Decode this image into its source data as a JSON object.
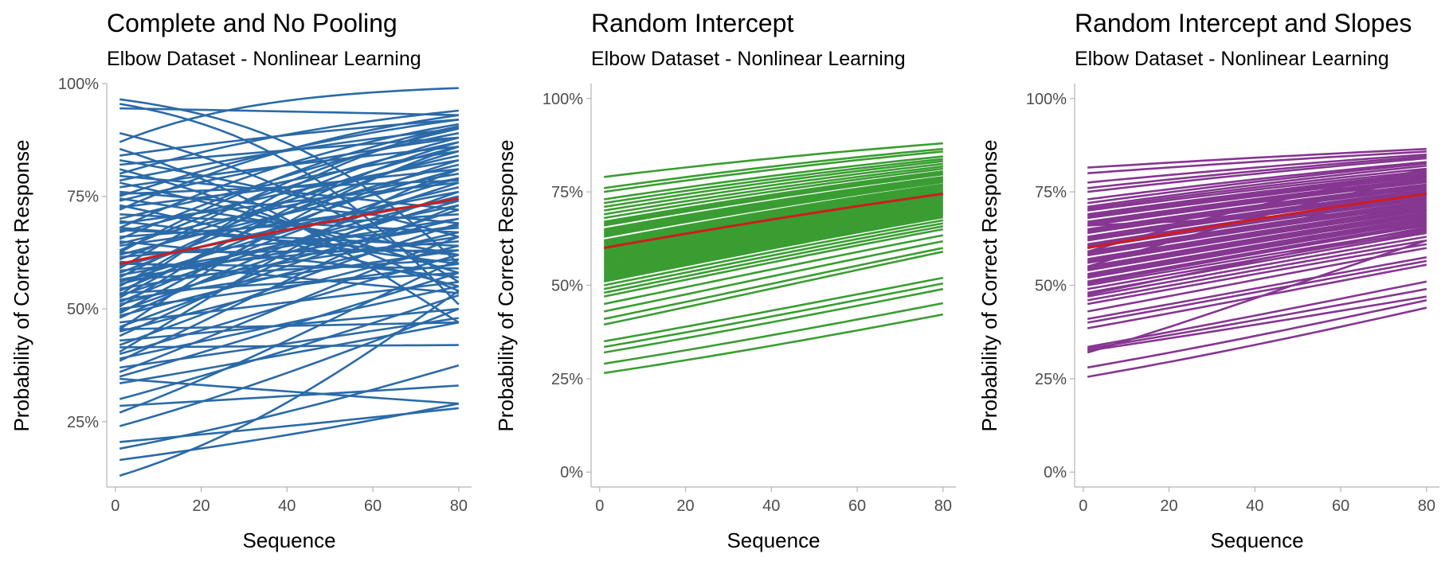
{
  "chart_data": [
    {
      "type": "line",
      "title": "Complete and No Pooling",
      "subtitle": "Elbow Dataset - Nonlinear Learning",
      "xlabel": "Sequence",
      "ylabel": "Probability of Correct Response",
      "xlim": [
        -2,
        83
      ],
      "ylim": [
        0.105,
        1.0
      ],
      "x_ticks": [
        0,
        20,
        40,
        60,
        80
      ],
      "x_tick_labels": [
        "0",
        "20",
        "40",
        "60",
        "80"
      ],
      "y_ticks": [
        0.25,
        0.5,
        0.75,
        1.0
      ],
      "y_tick_labels": [
        "25%",
        "50%",
        "75%",
        "100%"
      ],
      "x_range": [
        1,
        80
      ],
      "grid": false,
      "legend": "none",
      "subject_color": "#2b6aa8",
      "population_color": "#d01c1c",
      "population": {
        "start": 0.6,
        "end": 0.745
      },
      "subjects": [
        {
          "start": 0.965,
          "end": 0.6
        },
        {
          "start": 0.955,
          "end": 0.51
        },
        {
          "start": 0.945,
          "end": 0.93
        },
        {
          "start": 0.89,
          "end": 0.56
        },
        {
          "start": 0.87,
          "end": 0.99
        },
        {
          "start": 0.855,
          "end": 0.47
        },
        {
          "start": 0.84,
          "end": 0.92
        },
        {
          "start": 0.83,
          "end": 0.66
        },
        {
          "start": 0.82,
          "end": 0.88
        },
        {
          "start": 0.81,
          "end": 0.54
        },
        {
          "start": 0.8,
          "end": 0.94
        },
        {
          "start": 0.795,
          "end": 0.72
        },
        {
          "start": 0.785,
          "end": 0.9
        },
        {
          "start": 0.78,
          "end": 0.58
        },
        {
          "start": 0.77,
          "end": 0.86
        },
        {
          "start": 0.76,
          "end": 0.69
        },
        {
          "start": 0.75,
          "end": 0.92
        },
        {
          "start": 0.745,
          "end": 0.62
        },
        {
          "start": 0.74,
          "end": 0.88
        },
        {
          "start": 0.73,
          "end": 0.55
        },
        {
          "start": 0.725,
          "end": 0.81
        },
        {
          "start": 0.72,
          "end": 0.93
        },
        {
          "start": 0.71,
          "end": 0.67
        },
        {
          "start": 0.7,
          "end": 0.85
        },
        {
          "start": 0.695,
          "end": 0.6
        },
        {
          "start": 0.69,
          "end": 0.78
        },
        {
          "start": 0.68,
          "end": 0.91
        },
        {
          "start": 0.675,
          "end": 0.64
        },
        {
          "start": 0.67,
          "end": 0.83
        },
        {
          "start": 0.66,
          "end": 0.71
        },
        {
          "start": 0.655,
          "end": 0.89
        },
        {
          "start": 0.65,
          "end": 0.57
        },
        {
          "start": 0.645,
          "end": 0.8
        },
        {
          "start": 0.64,
          "end": 0.74
        },
        {
          "start": 0.63,
          "end": 0.87
        },
        {
          "start": 0.625,
          "end": 0.63
        },
        {
          "start": 0.62,
          "end": 0.79
        },
        {
          "start": 0.615,
          "end": 0.68
        },
        {
          "start": 0.61,
          "end": 0.84
        },
        {
          "start": 0.6,
          "end": 0.59
        },
        {
          "start": 0.595,
          "end": 0.76
        },
        {
          "start": 0.59,
          "end": 0.9
        },
        {
          "start": 0.585,
          "end": 0.65
        },
        {
          "start": 0.58,
          "end": 0.82
        },
        {
          "start": 0.575,
          "end": 0.7
        },
        {
          "start": 0.57,
          "end": 0.86
        },
        {
          "start": 0.565,
          "end": 0.61
        },
        {
          "start": 0.56,
          "end": 0.77
        },
        {
          "start": 0.555,
          "end": 0.73
        },
        {
          "start": 0.55,
          "end": 0.88
        },
        {
          "start": 0.545,
          "end": 0.66
        },
        {
          "start": 0.54,
          "end": 0.81
        },
        {
          "start": 0.535,
          "end": 0.58
        },
        {
          "start": 0.53,
          "end": 0.75
        },
        {
          "start": 0.525,
          "end": 0.85
        },
        {
          "start": 0.52,
          "end": 0.63
        },
        {
          "start": 0.515,
          "end": 0.79
        },
        {
          "start": 0.51,
          "end": 0.7
        },
        {
          "start": 0.505,
          "end": 0.87
        },
        {
          "start": 0.5,
          "end": 0.6
        },
        {
          "start": 0.495,
          "end": 0.74
        },
        {
          "start": 0.49,
          "end": 0.83
        },
        {
          "start": 0.485,
          "end": 0.67
        },
        {
          "start": 0.48,
          "end": 0.78
        },
        {
          "start": 0.47,
          "end": 0.56
        },
        {
          "start": 0.46,
          "end": 0.72
        },
        {
          "start": 0.455,
          "end": 0.86
        },
        {
          "start": 0.45,
          "end": 0.64
        },
        {
          "start": 0.44,
          "end": 0.76
        },
        {
          "start": 0.43,
          "end": 0.5
        },
        {
          "start": 0.42,
          "end": 0.69
        },
        {
          "start": 0.415,
          "end": 0.42
        },
        {
          "start": 0.405,
          "end": 0.81
        },
        {
          "start": 0.4,
          "end": 0.62
        },
        {
          "start": 0.39,
          "end": 0.55
        },
        {
          "start": 0.385,
          "end": 0.73
        },
        {
          "start": 0.37,
          "end": 0.48
        },
        {
          "start": 0.36,
          "end": 0.66
        },
        {
          "start": 0.35,
          "end": 0.58
        },
        {
          "start": 0.345,
          "end": 0.29
        },
        {
          "start": 0.335,
          "end": 0.47
        },
        {
          "start": 0.3,
          "end": 0.53
        },
        {
          "start": 0.285,
          "end": 0.33
        },
        {
          "start": 0.27,
          "end": 0.61
        },
        {
          "start": 0.24,
          "end": 0.5
        },
        {
          "start": 0.205,
          "end": 0.28
        },
        {
          "start": 0.19,
          "end": 0.375
        },
        {
          "start": 0.165,
          "end": 0.29
        },
        {
          "start": 0.13,
          "end": 0.54
        },
        {
          "start": 0.455,
          "end": 0.47
        },
        {
          "start": 0.625,
          "end": 0.905
        },
        {
          "start": 0.68,
          "end": 0.62
        },
        {
          "start": 0.53,
          "end": 0.905
        },
        {
          "start": 0.565,
          "end": 0.685
        },
        {
          "start": 0.755,
          "end": 0.785
        },
        {
          "start": 0.605,
          "end": 0.535
        }
      ]
    },
    {
      "type": "line",
      "title": "Random Intercept",
      "subtitle": "Elbow Dataset - Nonlinear Learning",
      "xlabel": "Sequence",
      "ylabel": "Probability of Correct Response",
      "xlim": [
        -2,
        83
      ],
      "ylim": [
        -0.04,
        1.04
      ],
      "x_ticks": [
        0,
        20,
        40,
        60,
        80
      ],
      "x_tick_labels": [
        "0",
        "20",
        "40",
        "60",
        "80"
      ],
      "y_ticks": [
        0,
        0.25,
        0.5,
        0.75,
        1.0
      ],
      "y_tick_labels": [
        "0%",
        "25%",
        "50%",
        "75%",
        "100%"
      ],
      "x_range": [
        1,
        80
      ],
      "grid": false,
      "legend": "none",
      "subject_color": "#3a9d32",
      "population_color": "#d01c1c",
      "population": {
        "start": 0.6,
        "end": 0.745
      },
      "subjects": [
        {
          "start": 0.79,
          "end": 0.88
        },
        {
          "start": 0.76,
          "end": 0.865
        },
        {
          "start": 0.75,
          "end": 0.858
        },
        {
          "start": 0.73,
          "end": 0.845
        },
        {
          "start": 0.72,
          "end": 0.838
        },
        {
          "start": 0.71,
          "end": 0.832
        },
        {
          "start": 0.7,
          "end": 0.825
        },
        {
          "start": 0.69,
          "end": 0.818
        },
        {
          "start": 0.68,
          "end": 0.812
        },
        {
          "start": 0.67,
          "end": 0.805
        },
        {
          "start": 0.665,
          "end": 0.8
        },
        {
          "start": 0.66,
          "end": 0.797
        },
        {
          "start": 0.65,
          "end": 0.79
        },
        {
          "start": 0.645,
          "end": 0.787
        },
        {
          "start": 0.64,
          "end": 0.783
        },
        {
          "start": 0.635,
          "end": 0.78
        },
        {
          "start": 0.63,
          "end": 0.776
        },
        {
          "start": 0.62,
          "end": 0.77
        },
        {
          "start": 0.615,
          "end": 0.766
        },
        {
          "start": 0.61,
          "end": 0.762
        },
        {
          "start": 0.605,
          "end": 0.758
        },
        {
          "start": 0.6,
          "end": 0.754
        },
        {
          "start": 0.595,
          "end": 0.75
        },
        {
          "start": 0.59,
          "end": 0.746
        },
        {
          "start": 0.585,
          "end": 0.742
        },
        {
          "start": 0.58,
          "end": 0.738
        },
        {
          "start": 0.575,
          "end": 0.734
        },
        {
          "start": 0.57,
          "end": 0.73
        },
        {
          "start": 0.565,
          "end": 0.726
        },
        {
          "start": 0.56,
          "end": 0.722
        },
        {
          "start": 0.555,
          "end": 0.718
        },
        {
          "start": 0.55,
          "end": 0.714
        },
        {
          "start": 0.545,
          "end": 0.71
        },
        {
          "start": 0.54,
          "end": 0.706
        },
        {
          "start": 0.535,
          "end": 0.702
        },
        {
          "start": 0.53,
          "end": 0.698
        },
        {
          "start": 0.525,
          "end": 0.694
        },
        {
          "start": 0.52,
          "end": 0.69
        },
        {
          "start": 0.515,
          "end": 0.686
        },
        {
          "start": 0.51,
          "end": 0.682
        },
        {
          "start": 0.5,
          "end": 0.674
        },
        {
          "start": 0.49,
          "end": 0.666
        },
        {
          "start": 0.48,
          "end": 0.658
        },
        {
          "start": 0.47,
          "end": 0.65
        },
        {
          "start": 0.45,
          "end": 0.634
        },
        {
          "start": 0.43,
          "end": 0.618
        },
        {
          "start": 0.41,
          "end": 0.6
        },
        {
          "start": 0.395,
          "end": 0.59
        },
        {
          "start": 0.35,
          "end": 0.52
        },
        {
          "start": 0.335,
          "end": 0.505
        },
        {
          "start": 0.32,
          "end": 0.49
        },
        {
          "start": 0.29,
          "end": 0.452
        },
        {
          "start": 0.265,
          "end": 0.422
        }
      ]
    },
    {
      "type": "line",
      "title": "Random Intercept and Slopes",
      "subtitle": "Elbow Dataset - Nonlinear Learning",
      "xlabel": "Sequence",
      "ylabel": "Probability of Correct Response",
      "xlim": [
        -2,
        83
      ],
      "ylim": [
        -0.04,
        1.04
      ],
      "x_ticks": [
        0,
        20,
        40,
        60,
        80
      ],
      "x_tick_labels": [
        "0",
        "20",
        "40",
        "60",
        "80"
      ],
      "y_ticks": [
        0,
        0.25,
        0.5,
        0.75,
        1.0
      ],
      "y_tick_labels": [
        "0%",
        "25%",
        "50%",
        "75%",
        "100%"
      ],
      "x_range": [
        1,
        80
      ],
      "grid": false,
      "legend": "none",
      "subject_color": "#853690",
      "population_color": "#d01c1c",
      "population": {
        "start": 0.6,
        "end": 0.745
      },
      "subjects": [
        {
          "start": 0.815,
          "end": 0.865
        },
        {
          "start": 0.8,
          "end": 0.858
        },
        {
          "start": 0.775,
          "end": 0.85
        },
        {
          "start": 0.76,
          "end": 0.845
        },
        {
          "start": 0.75,
          "end": 0.84
        },
        {
          "start": 0.73,
          "end": 0.83
        },
        {
          "start": 0.72,
          "end": 0.826
        },
        {
          "start": 0.71,
          "end": 0.82
        },
        {
          "start": 0.705,
          "end": 0.812
        },
        {
          "start": 0.7,
          "end": 0.805
        },
        {
          "start": 0.69,
          "end": 0.8
        },
        {
          "start": 0.685,
          "end": 0.795
        },
        {
          "start": 0.68,
          "end": 0.79
        },
        {
          "start": 0.67,
          "end": 0.785
        },
        {
          "start": 0.665,
          "end": 0.78
        },
        {
          "start": 0.66,
          "end": 0.776
        },
        {
          "start": 0.65,
          "end": 0.77
        },
        {
          "start": 0.645,
          "end": 0.765
        },
        {
          "start": 0.64,
          "end": 0.76
        },
        {
          "start": 0.63,
          "end": 0.755
        },
        {
          "start": 0.625,
          "end": 0.75
        },
        {
          "start": 0.62,
          "end": 0.745
        },
        {
          "start": 0.61,
          "end": 0.74
        },
        {
          "start": 0.605,
          "end": 0.735
        },
        {
          "start": 0.6,
          "end": 0.73
        },
        {
          "start": 0.59,
          "end": 0.725
        },
        {
          "start": 0.585,
          "end": 0.72
        },
        {
          "start": 0.58,
          "end": 0.715
        },
        {
          "start": 0.57,
          "end": 0.71
        },
        {
          "start": 0.565,
          "end": 0.705
        },
        {
          "start": 0.56,
          "end": 0.7
        },
        {
          "start": 0.55,
          "end": 0.695
        },
        {
          "start": 0.545,
          "end": 0.69
        },
        {
          "start": 0.54,
          "end": 0.685
        },
        {
          "start": 0.53,
          "end": 0.68
        },
        {
          "start": 0.525,
          "end": 0.675
        },
        {
          "start": 0.52,
          "end": 0.67
        },
        {
          "start": 0.51,
          "end": 0.665
        },
        {
          "start": 0.505,
          "end": 0.66
        },
        {
          "start": 0.5,
          "end": 0.65
        },
        {
          "start": 0.49,
          "end": 0.645
        },
        {
          "start": 0.48,
          "end": 0.64
        },
        {
          "start": 0.475,
          "end": 0.655
        },
        {
          "start": 0.47,
          "end": 0.63
        },
        {
          "start": 0.46,
          "end": 0.62
        },
        {
          "start": 0.45,
          "end": 0.61
        },
        {
          "start": 0.43,
          "end": 0.6
        },
        {
          "start": 0.41,
          "end": 0.575
        },
        {
          "start": 0.4,
          "end": 0.565
        },
        {
          "start": 0.385,
          "end": 0.555
        },
        {
          "start": 0.335,
          "end": 0.51
        },
        {
          "start": 0.33,
          "end": 0.49
        },
        {
          "start": 0.325,
          "end": 0.47
        },
        {
          "start": 0.32,
          "end": 0.62
        },
        {
          "start": 0.28,
          "end": 0.46
        },
        {
          "start": 0.255,
          "end": 0.44
        },
        {
          "start": 0.59,
          "end": 0.81
        },
        {
          "start": 0.55,
          "end": 0.79
        },
        {
          "start": 0.66,
          "end": 0.7
        }
      ]
    }
  ]
}
